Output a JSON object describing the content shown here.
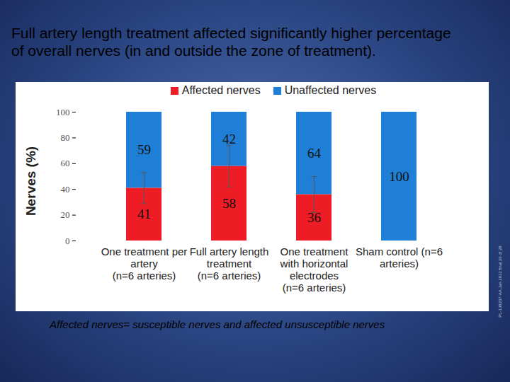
{
  "chart_data": {
    "type": "bar",
    "title": "Full artery length treatment affected significantly higher percentage of overall nerves (in and outside the zone of treatment).",
    "y_label": "Nerves (%)",
    "categories": [
      "One treatment per\nartery\n(n=6 arteries)",
      "Full artery length\ntreatment\n(n=6 arteries)",
      "One treatment\nwith horizontal\nelectrodes\n(n=6 arteries)",
      "Sham control (n=6\narteries)"
    ],
    "series": [
      {
        "name": "Affected nerves",
        "color": "#ee1c24",
        "values": [
          41,
          58,
          36,
          null
        ],
        "errors": [
          12,
          16,
          14,
          null
        ]
      },
      {
        "name": "Unaffected nerves",
        "color": "#1f7fd6",
        "values": [
          59,
          42,
          64,
          100
        ]
      }
    ],
    "stacked": true,
    "data_labels": true,
    "ylim": [
      0,
      100
    ],
    "yticks": [
      0,
      20,
      40,
      60,
      80,
      100
    ],
    "grid": false,
    "legend": "top",
    "footnote": "Affected nerves= susceptible nerves and affected unsusceptible nerves",
    "side_note": "PL-138207-AA Jan 2013 final 26 of 28"
  }
}
